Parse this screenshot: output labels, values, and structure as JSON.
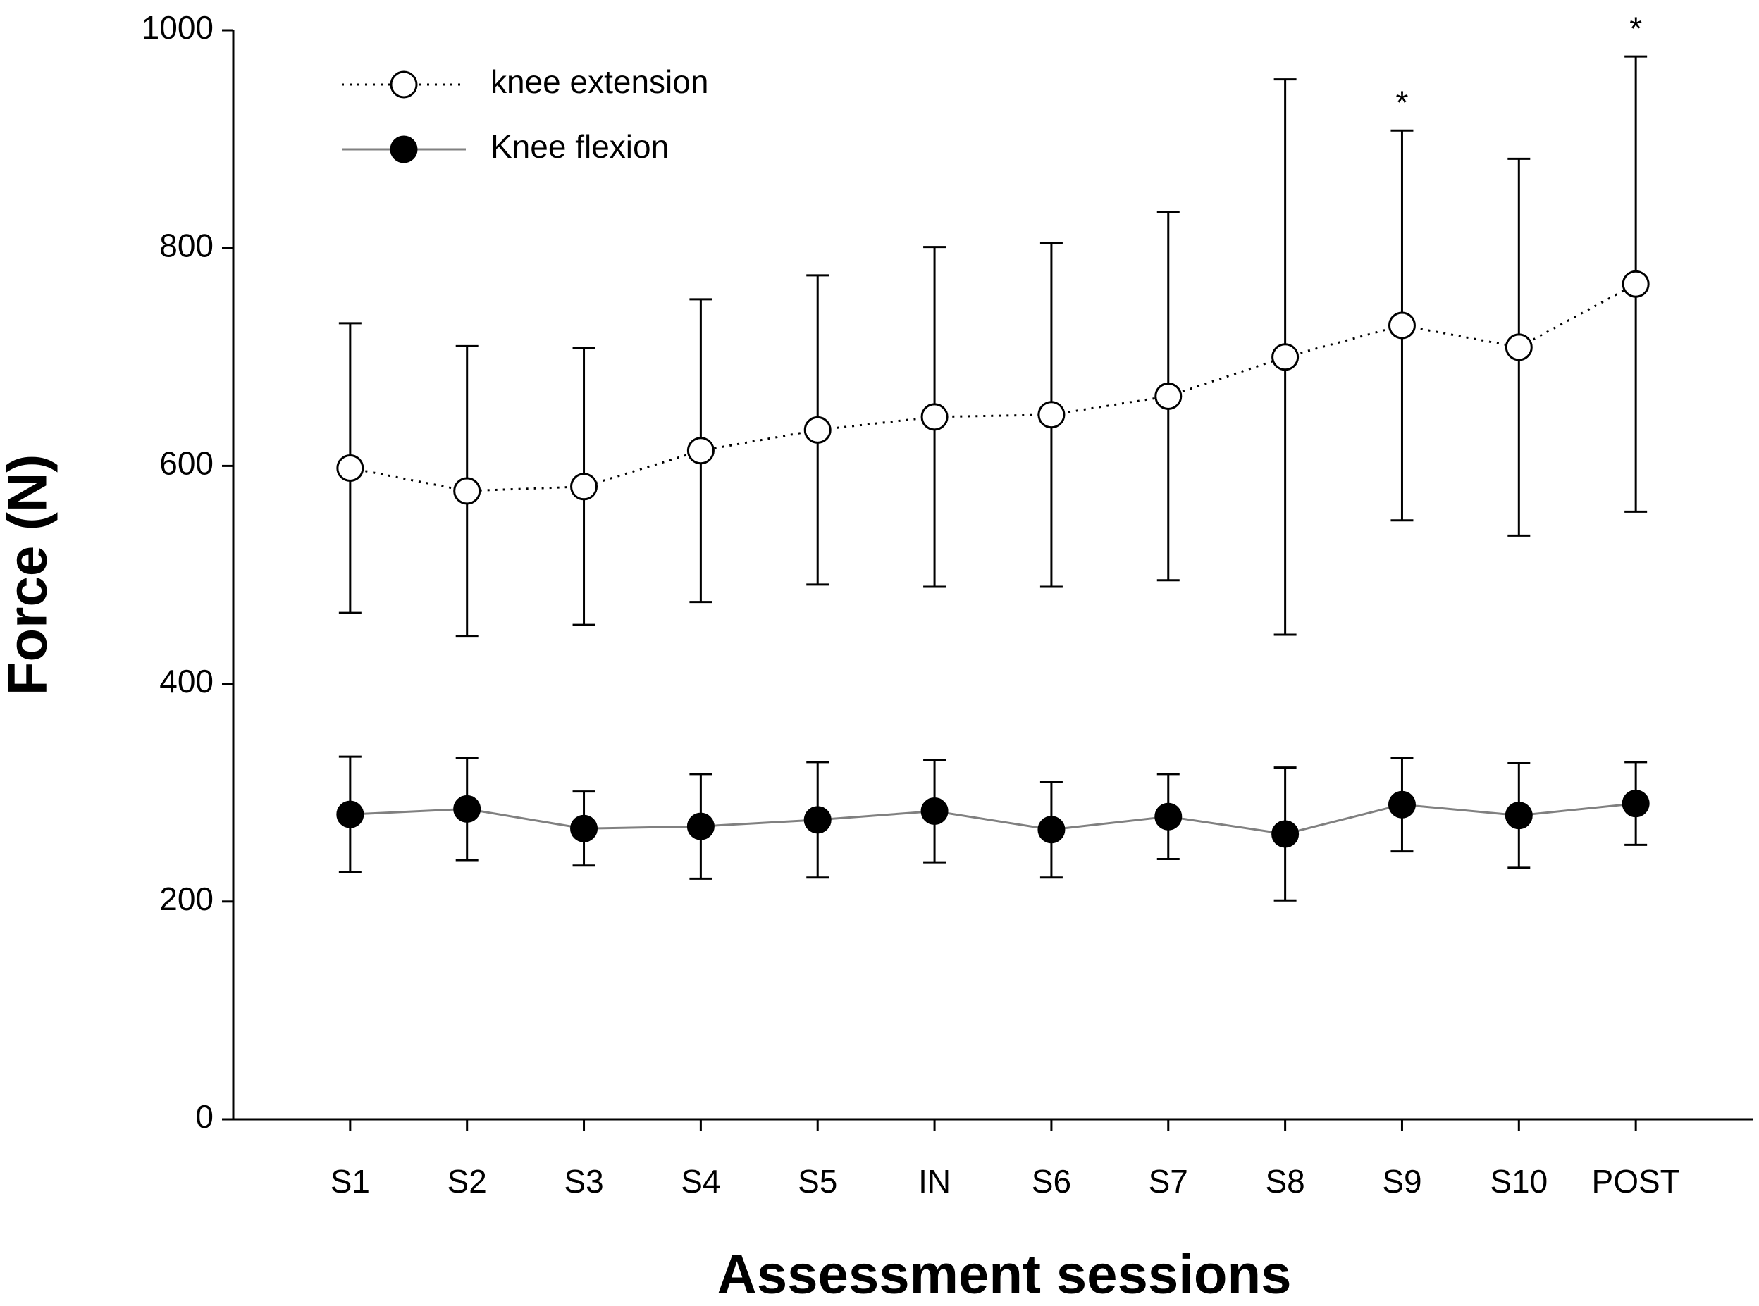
{
  "chart_data": {
    "type": "line",
    "x_label": "Assessment sessions",
    "y_label": "Force (N)",
    "categories": [
      "S1",
      "S2",
      "S3",
      "S4",
      "S5",
      "IN",
      "S6",
      "S7",
      "S8",
      "S9",
      "S10",
      "POST"
    ],
    "series": [
      {
        "name": "knee extension",
        "color": "#000000",
        "marker_fill": "#ffffff",
        "line_style": "dotted",
        "values": [
          598,
          577,
          581,
          614,
          633,
          645,
          647,
          664,
          700,
          729,
          709,
          767
        ],
        "errors": [
          133,
          133,
          127,
          139,
          142,
          156,
          158,
          169,
          255,
          179,
          173,
          209
        ]
      },
      {
        "name": "Knee flexion",
        "color": "#808080",
        "marker_fill": "#000000",
        "line_style": "solid",
        "values": [
          280,
          285,
          267,
          269,
          275,
          283,
          266,
          278,
          262,
          289,
          279,
          290
        ],
        "errors": [
          53,
          47,
          34,
          48,
          53,
          47,
          44,
          39,
          61,
          43,
          48,
          38
        ]
      }
    ],
    "annotations": [
      {
        "text": "*",
        "category": "S9"
      },
      {
        "text": "*",
        "category": "POST"
      }
    ],
    "ylim": [
      0,
      1000
    ],
    "yticks": [
      0,
      200,
      400,
      600,
      800,
      1000
    ],
    "legend": "upper left",
    "grid": false
  }
}
